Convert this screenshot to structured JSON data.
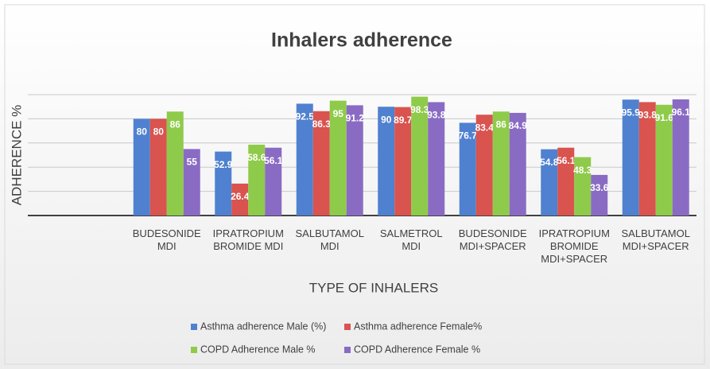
{
  "chart_data": {
    "type": "bar",
    "title": "Inhalers adherence",
    "y_label": "ADHERENCE %",
    "x_label": "TYPE OF INHALERS",
    "categories": [
      null,
      "BUDESONIDE MDI",
      "IPRATROPIUM BROMIDE MDI",
      "SALBUTAMOL MDI",
      "SALMETROL MDI",
      "BUDESONIDE MDI+SPACER",
      "IPRATROPIUM BROMIDE MDI+SPACER",
      "SALBUTAMOL MDI+SPACER"
    ],
    "series": [
      {
        "name": "Asthma adherence Male (%)",
        "color": "#4f81d0",
        "values": [
          null,
          80,
          52.9,
          92.5,
          90,
          76.7,
          54.8,
          95.9
        ]
      },
      {
        "name": "Asthma adherence Female%",
        "color": "#d9534f",
        "values": [
          null,
          80,
          26.4,
          86.3,
          89.7,
          83.4,
          56.1,
          93.8
        ]
      },
      {
        "name": "COPD Adherence Male %",
        "color": "#8fcb4a",
        "values": [
          null,
          86,
          58.6,
          95,
          98.3,
          86,
          48.3,
          91.6
        ]
      },
      {
        "name": "COPD Adherence Female %",
        "color": "#8a6bc4",
        "values": [
          null,
          55,
          56.1,
          91.2,
          93.8,
          84.9,
          33.6,
          96.1
        ]
      }
    ],
    "ylim": [
      0,
      100
    ],
    "yticks": [
      0,
      20,
      40,
      60,
      80,
      100
    ],
    "grid": true,
    "legend": "bottom"
  }
}
